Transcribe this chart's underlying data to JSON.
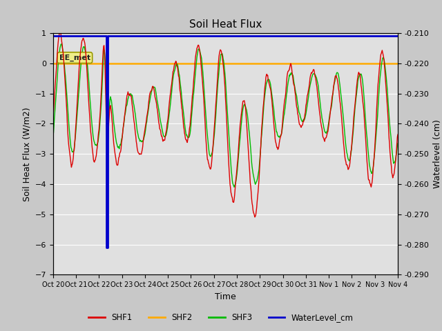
{
  "title": "Soil Heat Flux",
  "xlabel": "Time",
  "ylabel_left": "Soil Heat Flux (W/m2)",
  "ylabel_right": "Waterlevel (cm)",
  "ylim_left": [
    -7.0,
    1.0
  ],
  "ylim_right": [
    -0.29,
    -0.21
  ],
  "xtick_labels": [
    "Oct 20",
    "Oct 21",
    "Oct 22",
    "Oct 23",
    "Oct 24",
    "Oct 25",
    "Oct 26",
    "Oct 27",
    "Oct 28",
    "Oct 29",
    "Oct 30",
    "Oct 31",
    "Nov 1",
    "Nov 2",
    "Nov 3",
    "Nov 4"
  ],
  "fig_bg_color": "#c8c8c8",
  "plot_bg_color": "#e0e0e0",
  "annotation_text": "EE_met",
  "colors": {
    "SHF1": "#dd0000",
    "SHF2": "#ffaa00",
    "SHF3": "#00bb00",
    "WaterLevel": "#0000cc"
  },
  "figsize": [
    6.4,
    4.8
  ],
  "dpi": 100
}
